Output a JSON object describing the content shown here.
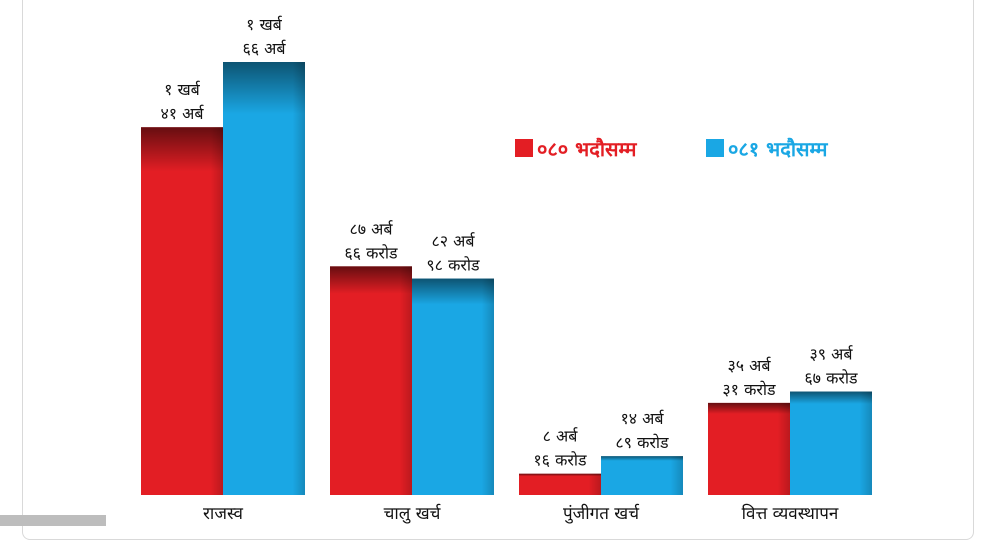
{
  "chart_data": {
    "type": "bar",
    "categories": [
      "राजस्व",
      "चालु खर्च",
      "पुंजीगत खर्च",
      "वित्त व्यवस्थापन"
    ],
    "series": [
      {
        "name": "०८० भदौसम्म",
        "color": "#e31e24",
        "values": [
          14100,
          8766,
          816,
          3531
        ],
        "labels": [
          [
            "१ खर्ब",
            "४१ अर्ब"
          ],
          [
            "८७ अर्ब",
            "६६ करोड"
          ],
          [
            "८ अर्ब",
            "१६ करोड"
          ],
          [
            "३५ अर्ब",
            "३१ करोड"
          ]
        ]
      },
      {
        "name": "०८१ भदौसम्म",
        "color": "#1aa7e4",
        "values": [
          16600,
          8298,
          1489,
          3967
        ],
        "labels": [
          [
            "१ खर्ब",
            "६६ अर्ब"
          ],
          [
            "८२ अर्ब",
            "९८ करोड"
          ],
          [
            "१४ अर्ब",
            "८९ करोड"
          ],
          [
            "३९ अर्ब",
            "६७ करोड"
          ]
        ]
      }
    ],
    "value_unit": "करोड",
    "ylim": [
      0,
      16600
    ],
    "grid": false,
    "legend_position": "top-right",
    "title": "",
    "xlabel": "",
    "ylabel": ""
  }
}
